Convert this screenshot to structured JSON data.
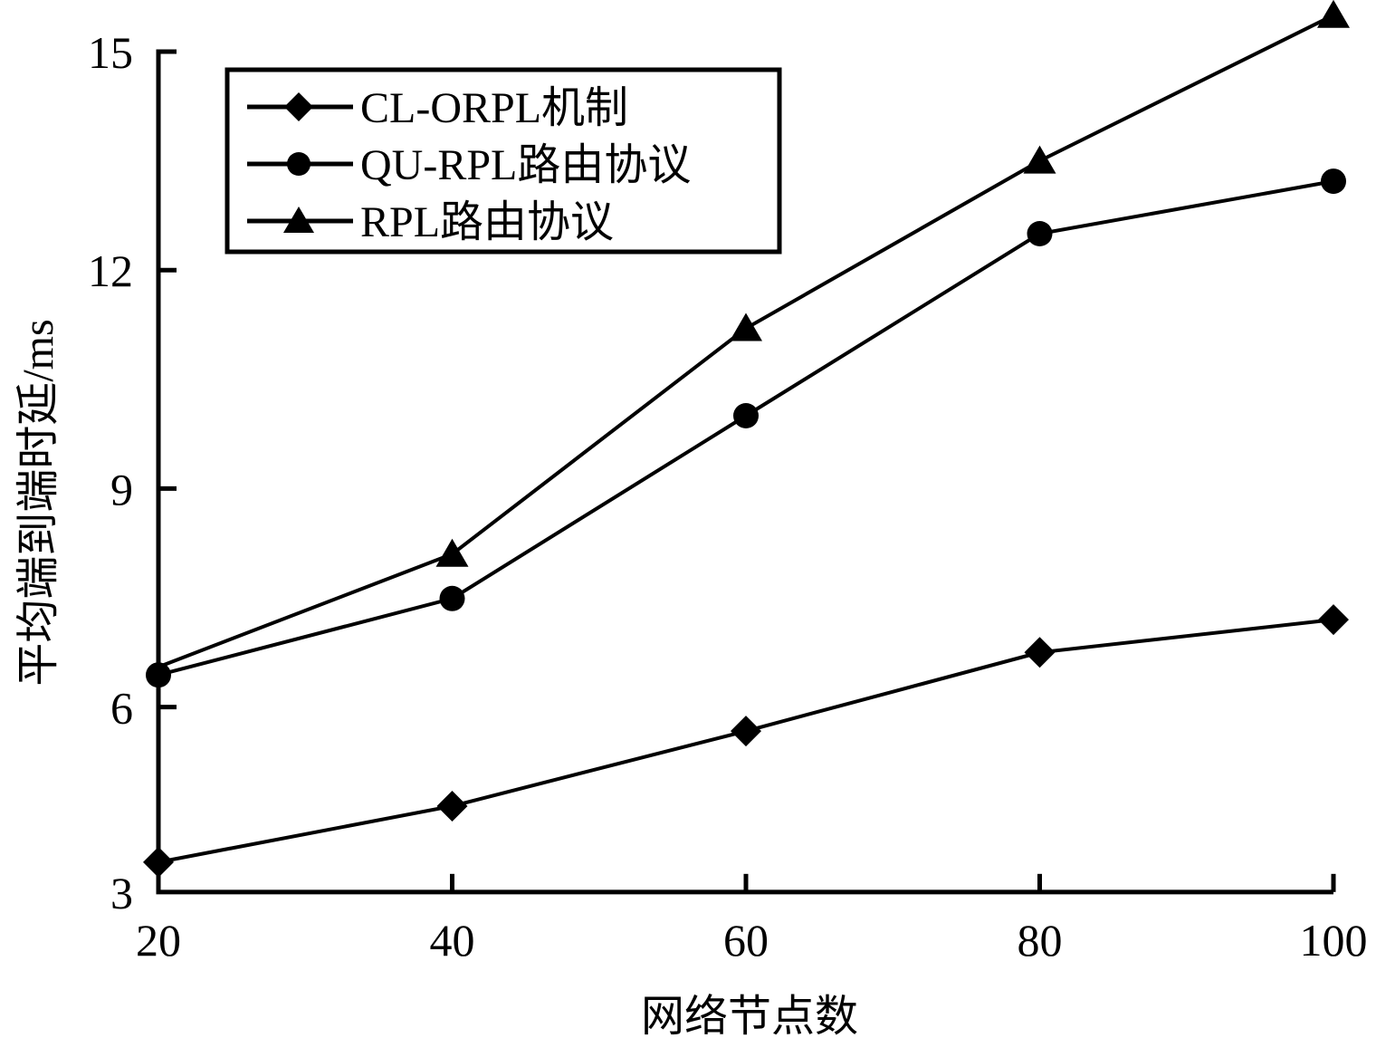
{
  "chart_data": {
    "type": "line",
    "title": "",
    "xlabel": "网络节点数",
    "ylabel": "平均端到端时延/ms",
    "x": [
      20,
      40,
      60,
      80,
      100
    ],
    "xticks": [
      "20",
      "40",
      "60",
      "80",
      "100"
    ],
    "yticks": [
      "3",
      "6",
      "9",
      "12",
      "15"
    ],
    "ylim": [
      3.46,
      15
    ],
    "xlim": [
      20,
      100
    ],
    "grid": false,
    "legend_position": "top-left",
    "series": [
      {
        "name": "CL-ORPL机制",
        "marker": "diamond",
        "values": [
          3.87,
          4.64,
          5.67,
          6.75,
          7.2
        ]
      },
      {
        "name": "QU-RPL路由协议",
        "marker": "circle",
        "values": [
          6.44,
          7.49,
          10.0,
          12.5,
          13.22
        ]
      },
      {
        "name": "RPL路由协议",
        "marker": "triangle",
        "values": [
          6.55,
          8.1,
          11.2,
          13.5,
          15.5
        ]
      }
    ],
    "color": "#000000"
  }
}
